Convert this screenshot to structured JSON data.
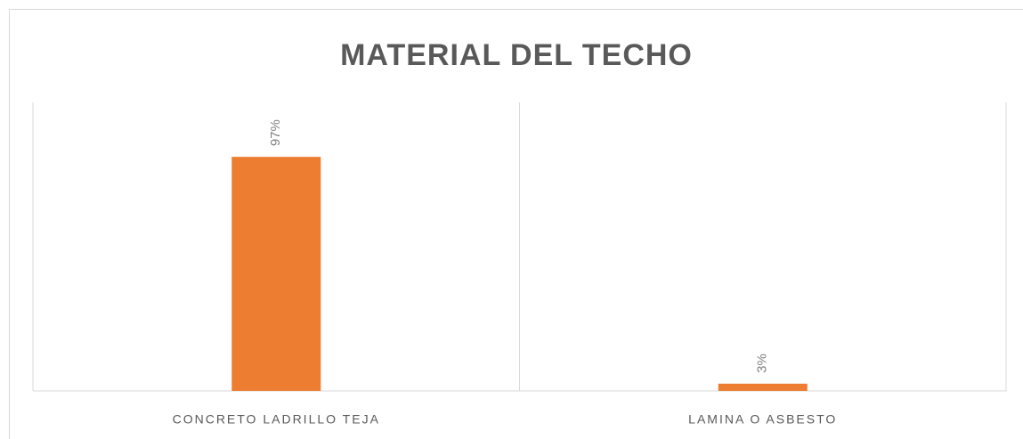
{
  "chart_data": {
    "type": "bar",
    "title": "MATERIAL DEL TECHO",
    "categories": [
      "CONCRETO LADRILLO TEJA",
      "LAMINA O ASBESTO"
    ],
    "values": [
      97,
      3
    ],
    "value_labels": [
      "97%",
      "3%"
    ],
    "color": "#ed7d31"
  }
}
